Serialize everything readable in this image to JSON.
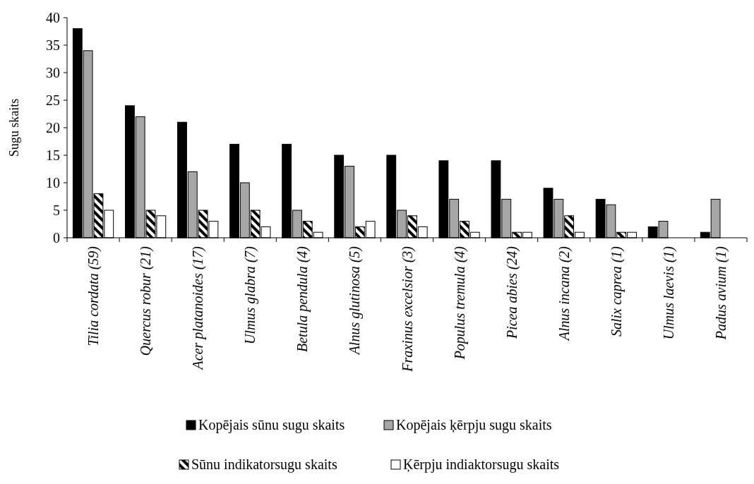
{
  "chart_data": {
    "type": "bar",
    "ylabel": "Sugu skaits",
    "categories": [
      "Tilia cordata (59)",
      "Quercus robur (21)",
      "Acer platanoides (17)",
      "Ulmus glabra (7)",
      "Betula pendula (4)",
      "Alnus glutinosa (5)",
      "Fraxinus excelsior (3)",
      "Populus tremula (4)",
      "Picea abies (24)",
      "Alnus incana (2)",
      "Salix caprea (1)",
      "Ulmus laevis (1)",
      "Padus avium (1)"
    ],
    "series": [
      {
        "name": "Kopējais sūnu sugu skaits",
        "color": "#000000",
        "values": [
          38,
          24,
          21,
          17,
          17,
          15,
          15,
          14,
          14,
          9,
          7,
          2,
          1
        ]
      },
      {
        "name": "Kopējais ķērpju sugu skaits",
        "color": "#a6a6a6",
        "values": [
          34,
          22,
          12,
          10,
          5,
          13,
          5,
          7,
          7,
          7,
          6,
          3,
          7
        ]
      },
      {
        "name": "Sūnu indikatorsugu skaits",
        "color": "#000000",
        "values": [
          8,
          5,
          5,
          5,
          3,
          2,
          4,
          3,
          1,
          4,
          1,
          null,
          null
        ]
      },
      {
        "name": "Ķērpju indiaktorsugu skaits",
        "color": "#ffffff",
        "values": [
          5,
          4,
          3,
          2,
          1,
          3,
          2,
          1,
          1,
          1,
          1,
          null,
          null
        ]
      }
    ],
    "ylim": [
      0,
      40
    ],
    "yticks": [
      0,
      5,
      10,
      15,
      20,
      25,
      30,
      35,
      40
    ],
    "grid": false,
    "legend": "bottom"
  }
}
